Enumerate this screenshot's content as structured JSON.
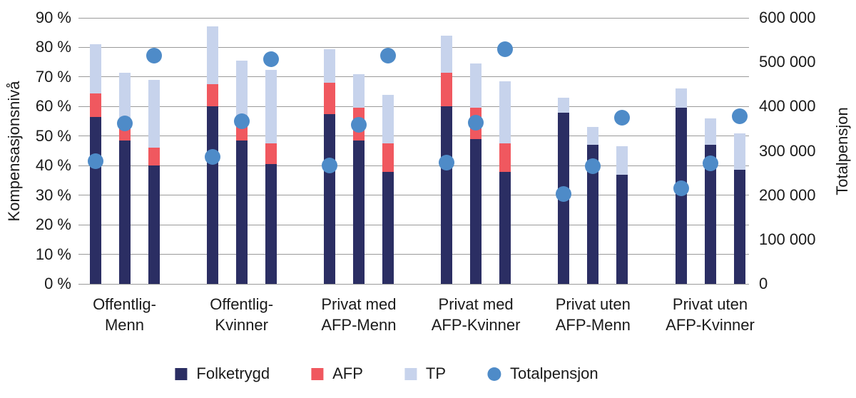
{
  "chart_data": {
    "type": "bar",
    "subtype": "stacked-bars-with-scatter-overlay",
    "grid": true,
    "left_axis": {
      "label": "Kompensasjonsnivå",
      "min": 0,
      "max": 90,
      "tick_step": 10,
      "ticks": [
        "0 %",
        "10 %",
        "20 %",
        "30 %",
        "40 %",
        "50 %",
        "60 %",
        "70 %",
        "80 %",
        "90 %"
      ]
    },
    "right_axis": {
      "label": "Totalpensjon",
      "min": 0,
      "max": 600000,
      "tick_step": 100000,
      "ticks": [
        "0",
        "100 000",
        "200 000",
        "300 000",
        "400 000",
        "500 000",
        "600 000"
      ]
    },
    "legend": [
      {
        "label": "Folketrygd",
        "series": "folketrygd",
        "shape": "square"
      },
      {
        "label": "AFP",
        "series": "afp",
        "shape": "square"
      },
      {
        "label": "TP",
        "series": "tp",
        "shape": "square"
      },
      {
        "label": "Totalpensjon",
        "series": "totalpensjon",
        "shape": "circle"
      }
    ],
    "colors": {
      "folketrygd": "#2B2E63",
      "afp": "#F0585F",
      "tp": "#C7D3EC",
      "totalpensjon": "#4E8BC8",
      "gridline": "#9A9A9A",
      "text": "#1A1A1A"
    },
    "groups": [
      {
        "category": [
          "Offentlig-",
          "Menn"
        ],
        "bars": [
          {
            "folketrygd": 56.5,
            "afp": 8.0,
            "tp": 16.5,
            "totalpensjon": 277000
          },
          {
            "folketrygd": 48.5,
            "afp": 6.5,
            "tp": 16.5,
            "totalpensjon": 362000
          },
          {
            "folketrygd": 40.0,
            "afp": 6.0,
            "tp": 23.0,
            "totalpensjon": 515000
          }
        ]
      },
      {
        "category": [
          "Offentlig-",
          "Kvinner"
        ],
        "bars": [
          {
            "folketrygd": 60.0,
            "afp": 7.5,
            "tp": 19.5,
            "totalpensjon": 287000
          },
          {
            "folketrygd": 48.5,
            "afp": 7.5,
            "tp": 19.5,
            "totalpensjon": 367000
          },
          {
            "folketrygd": 40.5,
            "afp": 7.0,
            "tp": 25.0,
            "totalpensjon": 507000
          }
        ]
      },
      {
        "category": [
          "Privat med",
          "AFP-Menn"
        ],
        "bars": [
          {
            "folketrygd": 57.5,
            "afp": 10.5,
            "tp": 11.5,
            "totalpensjon": 267000
          },
          {
            "folketrygd": 48.5,
            "afp": 11.0,
            "tp": 11.5,
            "totalpensjon": 358000
          },
          {
            "folketrygd": 38.0,
            "afp": 9.5,
            "tp": 16.5,
            "totalpensjon": 515000
          }
        ]
      },
      {
        "category": [
          "Privat med",
          "AFP-Kvinner"
        ],
        "bars": [
          {
            "folketrygd": 60.0,
            "afp": 11.5,
            "tp": 12.5,
            "totalpensjon": 274000
          },
          {
            "folketrygd": 49.0,
            "afp": 10.5,
            "tp": 15.0,
            "totalpensjon": 364000
          },
          {
            "folketrygd": 38.0,
            "afp": 9.5,
            "tp": 21.0,
            "totalpensjon": 530000
          }
        ]
      },
      {
        "category": [
          "Privat uten",
          "AFP-Menn"
        ],
        "bars": [
          {
            "folketrygd": 58.0,
            "afp": 0,
            "tp": 5.0,
            "totalpensjon": 203000
          },
          {
            "folketrygd": 47.0,
            "afp": 0,
            "tp": 6.0,
            "totalpensjon": 266000
          },
          {
            "folketrygd": 37.0,
            "afp": 0,
            "tp": 9.5,
            "totalpensjon": 375000
          }
        ]
      },
      {
        "category": [
          "Privat uten",
          "AFP-Kvinner"
        ],
        "bars": [
          {
            "folketrygd": 59.5,
            "afp": 0,
            "tp": 6.5,
            "totalpensjon": 215000
          },
          {
            "folketrygd": 47.0,
            "afp": 0,
            "tp": 9.0,
            "totalpensjon": 272000
          },
          {
            "folketrygd": 38.5,
            "afp": 0,
            "tp": 12.5,
            "totalpensjon": 378000
          }
        ]
      }
    ]
  }
}
